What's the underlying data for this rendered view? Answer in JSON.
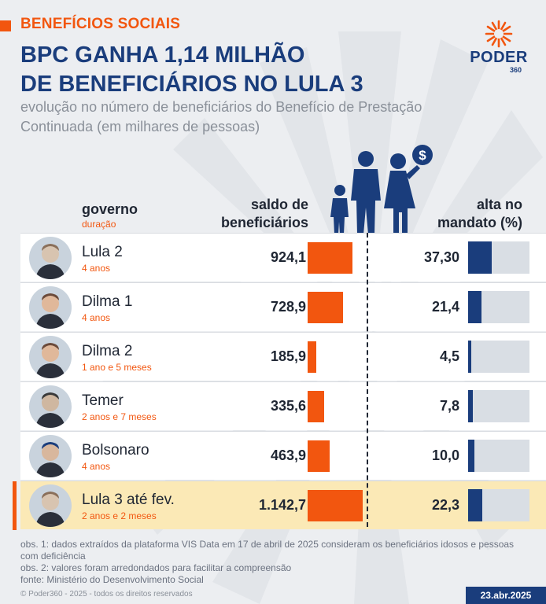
{
  "header": {
    "kicker": "BENEFÍCIOS SOCIAIS",
    "title_line1": "BPC GANHA 1,14 MILHÃO",
    "title_line2": "DE BENEFICIÁRIOS NO LULA 3",
    "subtitle": "evolução no número de beneficiários do Benefício de Prestação Continuada (em milhares de pessoas)"
  },
  "logo": {
    "word": "PODER",
    "number": "360",
    "icon": "sun-rays-icon",
    "color": "#f2560f"
  },
  "columns": {
    "governo": "governo",
    "duracao": "duração",
    "saldo_line1": "saldo de",
    "saldo_line2": "beneficiários",
    "alta_line1": "alta no",
    "alta_line2": "mandato (%)"
  },
  "rows": [
    {
      "name": "Lula 2",
      "duration": "4 anos",
      "saldo": "924,1",
      "alta": "37,30"
    },
    {
      "name": "Dilma 1",
      "duration": "4 anos",
      "saldo": "728,9",
      "alta": "21,4"
    },
    {
      "name": "Dilma 2",
      "duration": "1 ano e 5 meses",
      "saldo": "185,9",
      "alta": "4,5"
    },
    {
      "name": "Temer",
      "duration": "2 anos e 7 meses",
      "saldo": "335,6",
      "alta": "7,8"
    },
    {
      "name": "Bolsonaro",
      "duration": "4 anos",
      "saldo": "463,9",
      "alta": "10,0"
    },
    {
      "name": "Lula 3 até fev.",
      "duration": "2 anos e 2 meses",
      "saldo": "1.142,7",
      "alta": "22,3",
      "highlight": true
    }
  ],
  "chart_data": {
    "type": "table",
    "categories": [
      "Lula 2",
      "Dilma 1",
      "Dilma 2",
      "Temer",
      "Bolsonaro",
      "Lula 3 até fev."
    ],
    "series": [
      {
        "name": "saldo de beneficiários",
        "values": [
          924.1,
          728.9,
          185.9,
          335.6,
          463.9,
          1142.7
        ]
      },
      {
        "name": "alta no mandato (%)",
        "values": [
          37.3,
          21.4,
          4.5,
          7.8,
          10.0,
          22.3
        ]
      }
    ],
    "colors": {
      "saldo": "#f2560f",
      "alta": "#1a3d7c",
      "alta_track": "#d9dee4",
      "highlight_row": "#fbe9b6"
    }
  },
  "footer": {
    "note1": "obs. 1: dados extraídos da plataforma VIS Data em 17 de abril de 2025 consideram os beneficiários idosos e pessoas com deficiência",
    "note2": "obs. 2: valores foram arredondados para facilitar a compreensão",
    "source": "fonte: Ministério do Desenvolvimento Social",
    "copyright": "© Poder360 - 2025 - todos os direitos reservados",
    "date": "23.abr.2025"
  }
}
